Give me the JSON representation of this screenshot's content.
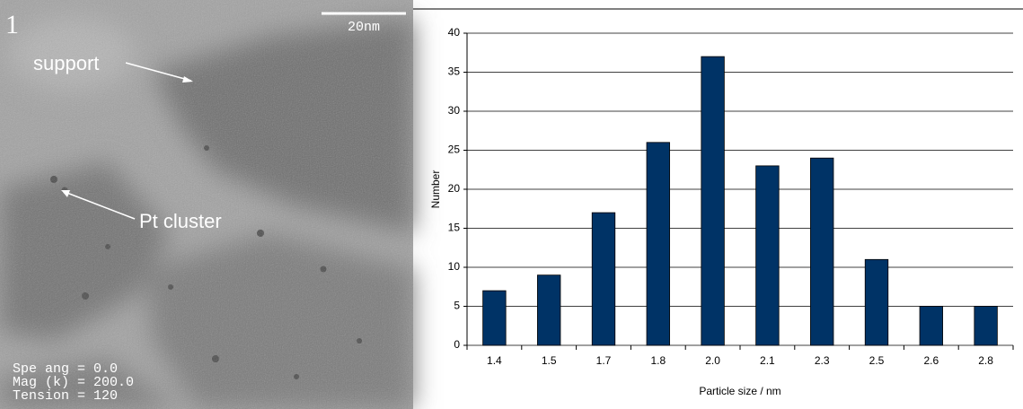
{
  "image": {
    "panel_label": "1",
    "scale_bar": "20nm",
    "support_label": "support",
    "cluster_label": "Pt cluster",
    "info": [
      "Spe ang = 0.0",
      "Mag (k) = 200.0",
      "Tension = 120"
    ]
  },
  "chart_data": {
    "type": "bar",
    "x_label": "Particle size / nm",
    "y_label": "Number",
    "categories": [
      "1.4",
      "1.5",
      "1.7",
      "1.8",
      "2.0",
      "2.1",
      "2.3",
      "2.5",
      "2.6",
      "2.8"
    ],
    "values": [
      7,
      9,
      17,
      26,
      37,
      23,
      24,
      11,
      5,
      5
    ],
    "color": "#003366",
    "ylim": [
      0,
      40
    ],
    "yticks": [
      0,
      5,
      10,
      15,
      20,
      25,
      30,
      35,
      40
    ],
    "grid": true
  }
}
